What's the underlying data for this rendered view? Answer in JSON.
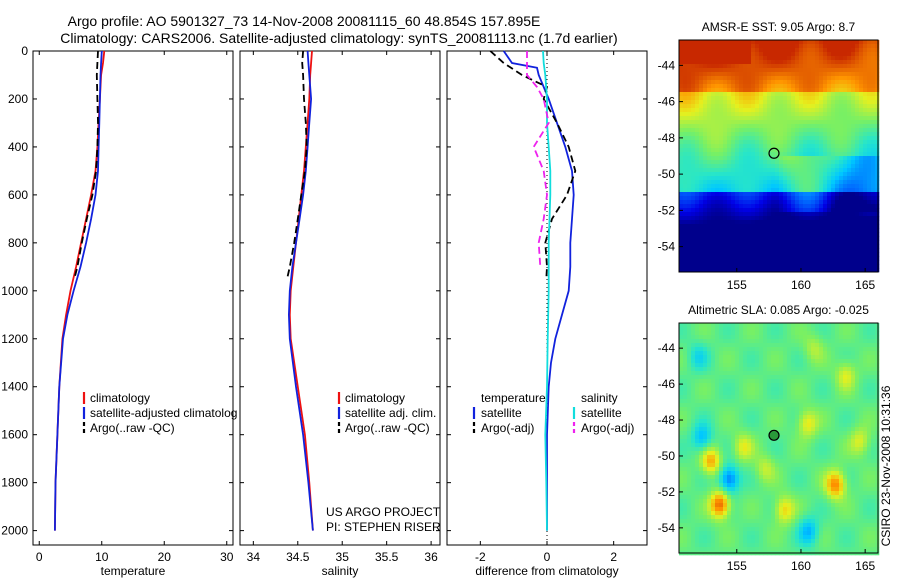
{
  "title": {
    "line1": "Argo profile: AO 5901327_73 14-Nov-2008 20081115_60 48.854S 157.895E",
    "line2": "Climatology: CARS2006. Satellite-adjusted climatology: synTS_20081113.nc (1.7d earlier)"
  },
  "side_text": "CSIRO 23-Nov-2008 10:31:36",
  "colors": {
    "climatology": "#ee1111",
    "satellite": "#1122dd",
    "argo": "#000000",
    "satellite_salinity": "#11dddd",
    "argo_salinity_adj": "#ee22ee"
  },
  "chart_data": [
    {
      "type": "line",
      "panel": "temperature",
      "xlabel": "temperature",
      "ylabel": "",
      "xlim": [
        -1,
        31
      ],
      "ylim": [
        2060,
        0
      ],
      "y_reversed": true,
      "xticks": [
        0,
        10,
        20,
        30
      ],
      "yticks": [
        0,
        200,
        400,
        600,
        800,
        1000,
        1200,
        1400,
        1600,
        1800,
        2000
      ],
      "legend_position": "lower-right",
      "series": [
        {
          "name": "climatology",
          "color_key": "climatology",
          "dash": "solid",
          "depth": [
            0,
            50,
            100,
            200,
            300,
            400,
            500,
            600,
            700,
            800,
            900,
            1000,
            1100,
            1200,
            1400,
            1600,
            1800,
            2000
          ],
          "values": [
            10.4,
            10.2,
            9.9,
            9.7,
            9.5,
            9.3,
            9.0,
            8.3,
            7.5,
            6.7,
            5.9,
            5.0,
            4.3,
            3.7,
            3.2,
            2.9,
            2.6,
            2.5
          ]
        },
        {
          "name": "satellite-adjusted climatology",
          "color_key": "satellite",
          "dash": "solid",
          "depth": [
            0,
            50,
            100,
            200,
            300,
            400,
            500,
            600,
            700,
            800,
            900,
            1000,
            1100,
            1200,
            1400,
            1600,
            1800,
            2000
          ],
          "values": [
            10.0,
            9.9,
            9.8,
            9.7,
            9.6,
            9.5,
            9.4,
            9.0,
            8.3,
            7.5,
            6.6,
            5.5,
            4.5,
            3.8,
            3.2,
            2.9,
            2.6,
            2.5
          ]
        },
        {
          "name": "Argo(..raw -QC)",
          "color_key": "argo",
          "dash": "dashed",
          "depth": [
            0,
            50,
            100,
            200,
            300,
            400,
            500,
            600,
            700,
            800,
            900,
            950
          ],
          "values": [
            9.4,
            9.3,
            9.2,
            9.3,
            9.4,
            9.3,
            9.1,
            8.5,
            7.6,
            6.8,
            6.1,
            5.6
          ]
        }
      ],
      "legend": [
        "climatology",
        "satellite-adjusted climatology",
        "Argo(..raw -QC)"
      ]
    },
    {
      "type": "line",
      "panel": "salinity",
      "xlabel": "salinity",
      "ylabel": "",
      "xlim": [
        33.85,
        36.1
      ],
      "ylim": [
        2060,
        0
      ],
      "y_reversed": true,
      "xticks": [
        34,
        34.5,
        35,
        35.5,
        36
      ],
      "xticklabels": [
        "34",
        "34.5",
        "35",
        "35.5",
        "36"
      ],
      "legend_position": "lower-right",
      "series": [
        {
          "name": "climatology",
          "color_key": "climatology",
          "dash": "solid",
          "depth": [
            0,
            50,
            100,
            200,
            300,
            400,
            500,
            600,
            700,
            800,
            900,
            1000,
            1100,
            1200,
            1400,
            1600,
            1800,
            2000
          ],
          "values": [
            34.66,
            34.65,
            34.64,
            34.63,
            34.61,
            34.59,
            34.57,
            34.54,
            34.51,
            34.48,
            34.45,
            34.42,
            34.41,
            34.42,
            34.5,
            34.58,
            34.63,
            34.67
          ]
        },
        {
          "name": "satellite adj. clim.",
          "color_key": "satellite",
          "dash": "solid",
          "depth": [
            0,
            50,
            100,
            200,
            300,
            400,
            500,
            600,
            700,
            800,
            900,
            1000,
            1100,
            1200,
            1400,
            1600,
            1800,
            2000
          ],
          "values": [
            34.61,
            34.62,
            34.63,
            34.65,
            34.63,
            34.61,
            34.59,
            34.56,
            34.52,
            34.48,
            34.44,
            34.41,
            34.4,
            34.41,
            34.48,
            34.56,
            34.62,
            34.67
          ]
        },
        {
          "name": "Argo(..raw -QC)",
          "color_key": "argo",
          "dash": "dashed",
          "depth": [
            0,
            50,
            100,
            200,
            300,
            400,
            500,
            600,
            700,
            800,
            900,
            950
          ],
          "values": [
            34.56,
            34.55,
            34.56,
            34.57,
            34.59,
            34.6,
            34.58,
            34.54,
            34.5,
            34.46,
            34.41,
            34.38
          ]
        }
      ],
      "legend": [
        "climatology",
        "satellite adj. clim.",
        "Argo(..raw -QC)"
      ],
      "annotation": [
        "US ARGO PROJECT",
        "PI: STEPHEN RISER"
      ]
    },
    {
      "type": "line",
      "panel": "difference",
      "xlabel": "difference from climatology",
      "ylabel": "",
      "xlim": [
        -3,
        3
      ],
      "ylim": [
        2060,
        0
      ],
      "y_reversed": true,
      "xticks": [
        -2,
        0,
        2
      ],
      "zero_line": true,
      "legend_position": "lower-center",
      "series": [
        {
          "name": "satellite",
          "group": "temperature",
          "color_key": "satellite",
          "dash": "solid",
          "depth": [
            0,
            50,
            70,
            100,
            200,
            300,
            400,
            500,
            600,
            700,
            800,
            900,
            1000,
            1100,
            1200,
            1300,
            1400,
            1600,
            1800,
            2000
          ],
          "values": [
            -1.3,
            -1.05,
            -0.3,
            -0.25,
            0.05,
            0.3,
            0.55,
            0.75,
            0.8,
            0.75,
            0.7,
            0.7,
            0.65,
            0.45,
            0.25,
            0.12,
            0.05,
            0.0,
            0.0,
            0.0
          ]
        },
        {
          "name": "Argo(-adj)",
          "group": "temperature",
          "color_key": "argo",
          "dash": "dashed",
          "depth": [
            0,
            50,
            100,
            150,
            200,
            300,
            400,
            500,
            600,
            700,
            800,
            900,
            950
          ],
          "values": [
            -1.7,
            -1.3,
            -0.75,
            0.0,
            -0.1,
            0.3,
            0.65,
            0.85,
            0.6,
            0.15,
            -0.05,
            0.0,
            -0.02
          ]
        },
        {
          "name": "satellite",
          "group": "salinity",
          "color_key": "satellite_salinity",
          "dash": "solid",
          "depth": [
            0,
            50,
            100,
            200,
            300,
            400,
            500,
            600,
            800,
            1000,
            1200,
            1400,
            1600,
            1800,
            2000
          ],
          "values": [
            -0.12,
            -0.1,
            -0.05,
            0.0,
            0.0,
            0.05,
            0.1,
            0.1,
            0.05,
            0.05,
            0.02,
            0.0,
            -0.05,
            -0.02,
            0.0
          ]
        },
        {
          "name": "Argo(-adj)",
          "group": "salinity",
          "color_key": "argo_salinity_adj",
          "dash": "dashed",
          "depth": [
            0,
            100,
            150,
            200,
            300,
            400,
            500,
            600,
            700,
            800,
            900
          ],
          "values": [
            -0.6,
            -0.6,
            -0.3,
            -0.1,
            0.05,
            -0.4,
            -0.1,
            0.0,
            -0.1,
            -0.25,
            -0.2
          ]
        }
      ],
      "legend_groups": [
        {
          "title": "temperature",
          "items": [
            {
              "label": "satellite",
              "color_key": "satellite",
              "dash": "solid"
            },
            {
              "label": "Argo(-adj)",
              "color_key": "argo",
              "dash": "dashed"
            }
          ]
        },
        {
          "title": "salinity",
          "items": [
            {
              "label": "satellite",
              "color_key": "satellite_salinity",
              "dash": "solid"
            },
            {
              "label": "Argo(-adj)",
              "color_key": "argo_salinity_adj",
              "dash": "dashed"
            }
          ]
        }
      ]
    },
    {
      "type": "heatmap",
      "panel": "sst-map",
      "title": "AMSR-E SST: 9.05 Argo: 8.7",
      "xlim": [
        150.5,
        166
      ],
      "ylim": [
        -55.4,
        -42.6
      ],
      "xticks": [
        155,
        160,
        165
      ],
      "yticks": [
        -44,
        -46,
        -48,
        -50,
        -52,
        -54
      ],
      "marker": {
        "lon": 157.9,
        "lat": -48.85,
        "style": "open circle"
      }
    },
    {
      "type": "heatmap",
      "panel": "sla-map",
      "title": "Altimetric SLA: 0.085 Argo: -0.025",
      "xlim": [
        150.5,
        166
      ],
      "ylim": [
        -55.4,
        -42.6
      ],
      "xticks": [
        155,
        160,
        165
      ],
      "yticks": [
        -44,
        -46,
        -48,
        -50,
        -52,
        -54
      ],
      "marker": {
        "lon": 157.9,
        "lat": -48.85,
        "style": "filled circle"
      }
    }
  ]
}
